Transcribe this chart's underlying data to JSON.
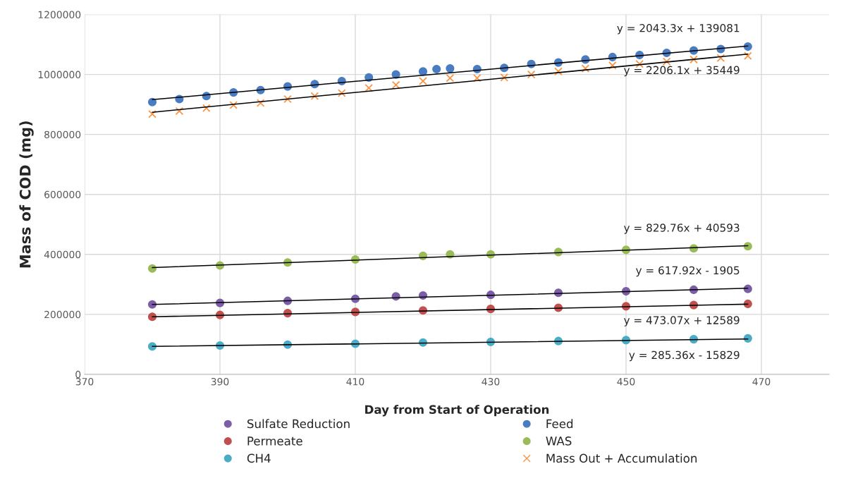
{
  "chart_data": {
    "type": "scatter",
    "xlabel": "Day from Start of Operation",
    "ylabel": "Mass of COD (mg)",
    "xlim": [
      370,
      480
    ],
    "xticks": [
      370,
      390,
      410,
      430,
      450,
      470
    ],
    "ylim": [
      0,
      1200000
    ],
    "yticks": [
      0,
      200000,
      400000,
      600000,
      800000,
      1000000,
      1200000
    ],
    "grid": true,
    "legend": "bottom",
    "series": [
      {
        "name": "Sulfate Reduction",
        "color": "#7b5ea7",
        "marker": "circle",
        "x": [
          380,
          390,
          400,
          410,
          416,
          420,
          430,
          440,
          450,
          460,
          468
        ],
        "values": [
          233000,
          238000,
          245000,
          252000,
          260000,
          263000,
          265000,
          272000,
          277000,
          282000,
          285000
        ]
      },
      {
        "name": "Feed",
        "color": "#4a7cc1",
        "marker": "circle",
        "x": [
          380,
          384,
          388,
          392,
          396,
          400,
          404,
          408,
          412,
          416,
          420,
          422,
          424,
          428,
          432,
          436,
          440,
          444,
          448,
          452,
          456,
          460,
          464,
          468
        ],
        "values": [
          908000,
          918000,
          928000,
          940000,
          948000,
          960000,
          968000,
          978000,
          990000,
          1000000,
          1010000,
          1018000,
          1020000,
          1018000,
          1022000,
          1035000,
          1040000,
          1050000,
          1058000,
          1065000,
          1072000,
          1080000,
          1085000,
          1093000
        ]
      },
      {
        "name": "Permeate",
        "color": "#c0504d",
        "marker": "circle",
        "x": [
          380,
          390,
          400,
          410,
          420,
          430,
          440,
          450,
          460,
          468
        ],
        "values": [
          192000,
          198000,
          204000,
          208000,
          213000,
          218000,
          222000,
          227000,
          231000,
          235000
        ]
      },
      {
        "name": "WAS",
        "color": "#9bbb59",
        "marker": "circle",
        "x": [
          380,
          390,
          400,
          410,
          420,
          424,
          430,
          440,
          450,
          460,
          468
        ],
        "values": [
          353000,
          363000,
          373000,
          383000,
          395000,
          400000,
          400000,
          408000,
          415000,
          420000,
          427000
        ]
      },
      {
        "name": "CH4",
        "color": "#4bacc6",
        "marker": "circle",
        "x": [
          380,
          390,
          400,
          410,
          420,
          430,
          440,
          450,
          460,
          468
        ],
        "values": [
          93000,
          96000,
          99000,
          102000,
          106000,
          108000,
          111000,
          114000,
          117000,
          120000
        ]
      },
      {
        "name": "Mass Out + Accumulation",
        "color": "#f79646",
        "marker": "cross",
        "x": [
          380,
          384,
          388,
          392,
          396,
          400,
          404,
          408,
          412,
          416,
          420,
          424,
          428,
          432,
          436,
          440,
          444,
          448,
          452,
          456,
          460,
          464,
          468
        ],
        "values": [
          868000,
          878000,
          888000,
          898000,
          905000,
          918000,
          928000,
          938000,
          955000,
          965000,
          978000,
          988000,
          988000,
          990000,
          1000000,
          1010000,
          1020000,
          1030000,
          1035000,
          1043000,
          1050000,
          1055000,
          1062000
        ]
      },
      {
        "type": "line",
        "color": "#000000",
        "x": [
          380,
          468
        ],
        "values": [
          916000,
          1095000
        ]
      },
      {
        "type": "line",
        "color": "#000000",
        "x": [
          380,
          468
        ],
        "values": [
          874000,
          1068000
        ]
      },
      {
        "type": "line",
        "color": "#000000",
        "x": [
          380,
          468
        ],
        "values": [
          356000,
          429000
        ]
      },
      {
        "type": "line",
        "color": "#000000",
        "x": [
          380,
          468
        ],
        "values": [
          233000,
          287000
        ]
      },
      {
        "type": "line",
        "color": "#000000",
        "x": [
          380,
          468
        ],
        "values": [
          192000,
          234000
        ]
      },
      {
        "type": "line",
        "color": "#000000",
        "x": [
          380,
          468
        ],
        "values": [
          93000,
          118000
        ]
      }
    ],
    "annotations": [
      "y = 2043.3x + 139081",
      "y = 2206.1x + 35449",
      "y = 829.76x + 40593",
      "y = 617.92x - 1905",
      "y = 473.07x + 12589",
      "y = 285.36x - 15829"
    ]
  }
}
